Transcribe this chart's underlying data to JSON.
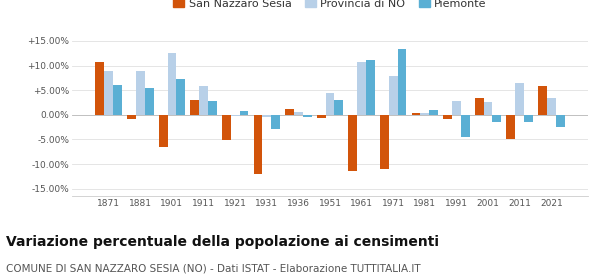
{
  "years": [
    1871,
    1881,
    1901,
    1911,
    1921,
    1931,
    1936,
    1951,
    1961,
    1971,
    1981,
    1991,
    2001,
    2011,
    2021
  ],
  "san_nazzaro": [
    10.7,
    -0.8,
    -6.5,
    3.0,
    -5.2,
    -12.0,
    1.2,
    -0.7,
    -11.5,
    -11.0,
    0.3,
    -0.8,
    3.5,
    -5.0,
    5.8
  ],
  "provincia_no": [
    9.0,
    9.0,
    12.5,
    5.8,
    -0.3,
    -0.5,
    0.5,
    4.5,
    10.8,
    7.8,
    0.3,
    2.8,
    2.5,
    6.5,
    3.5
  ],
  "piemonte": [
    6.0,
    5.5,
    7.2,
    2.8,
    0.8,
    -2.8,
    -0.5,
    3.0,
    11.2,
    13.3,
    1.0,
    -4.5,
    -1.5,
    -1.5,
    -2.5
  ],
  "color_san_nazzaro": "#d2540a",
  "color_provincia": "#b8d0e8",
  "color_piemonte": "#5aafd4",
  "title": "Variazione percentuale della popolazione ai censimenti",
  "subtitle": "COMUNE DI SAN NAZZARO SESIA (NO) - Dati ISTAT - Elaborazione TUTTITALIA.IT",
  "yticks": [
    -15.0,
    -10.0,
    -5.0,
    0.0,
    5.0,
    10.0,
    15.0
  ],
  "ylim": [
    -16.5,
    16.5
  ],
  "background_color": "#ffffff",
  "grid_color": "#e0e0e0",
  "title_fontsize": 10,
  "subtitle_fontsize": 7.5,
  "bar_width": 0.28
}
